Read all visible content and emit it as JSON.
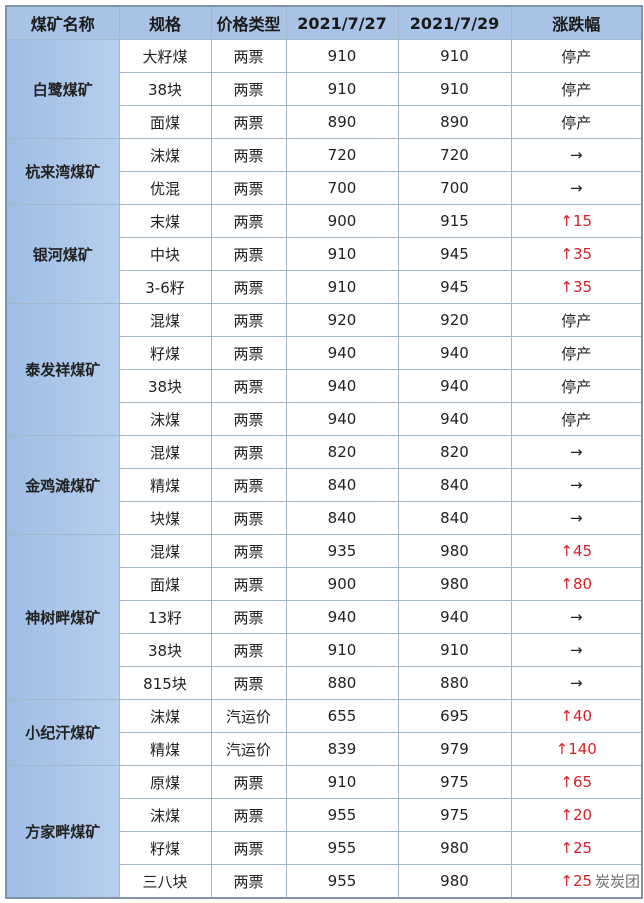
{
  "headers": [
    "煤矿名称",
    "规格",
    "价格类型",
    "2021/7/27",
    "2021/7/29",
    "涨跌幅"
  ],
  "colors": {
    "header_bg": "#a8c3e6",
    "mine_bg": "#a9c4e8",
    "up": "#d2232a",
    "border": "#a3b6cc"
  },
  "mines": [
    {
      "name": "白鹭煤矿",
      "rows": [
        [
          "大籽煤",
          "两票",
          "910",
          "910",
          "停产"
        ],
        [
          "38块",
          "两票",
          "910",
          "910",
          "停产"
        ],
        [
          "面煤",
          "两票",
          "890",
          "890",
          "停产"
        ]
      ]
    },
    {
      "name": "杭来湾煤矿",
      "rows": [
        [
          "沫煤",
          "两票",
          "720",
          "720",
          "→"
        ],
        [
          "优混",
          "两票",
          "700",
          "700",
          "→"
        ]
      ]
    },
    {
      "name": "银河煤矿",
      "rows": [
        [
          "末煤",
          "两票",
          "900",
          "915",
          "↑15"
        ],
        [
          "中块",
          "两票",
          "910",
          "945",
          "↑35"
        ],
        [
          "3-6籽",
          "两票",
          "910",
          "945",
          "↑35"
        ]
      ]
    },
    {
      "name": "泰发祥煤矿",
      "rows": [
        [
          "混煤",
          "两票",
          "920",
          "920",
          "停产"
        ],
        [
          "籽煤",
          "两票",
          "940",
          "940",
          "停产"
        ],
        [
          "38块",
          "两票",
          "940",
          "940",
          "停产"
        ],
        [
          "沫煤",
          "两票",
          "940",
          "940",
          "停产"
        ]
      ]
    },
    {
      "name": "金鸡滩煤矿",
      "rows": [
        [
          "混煤",
          "两票",
          "820",
          "820",
          "→"
        ],
        [
          "精煤",
          "两票",
          "840",
          "840",
          "→"
        ],
        [
          "块煤",
          "两票",
          "840",
          "840",
          "→"
        ]
      ]
    },
    {
      "name": "神树畔煤矿",
      "rows": [
        [
          "混煤",
          "两票",
          "935",
          "980",
          "↑45"
        ],
        [
          "面煤",
          "两票",
          "900",
          "980",
          "↑80"
        ],
        [
          "13籽",
          "两票",
          "940",
          "940",
          "→"
        ],
        [
          "38块",
          "两票",
          "910",
          "910",
          "→"
        ],
        [
          "815块",
          "两票",
          "880",
          "880",
          "→"
        ]
      ]
    },
    {
      "name": "小纪汗煤矿",
      "rows": [
        [
          "沫煤",
          "汽运价",
          "655",
          "695",
          "↑40"
        ],
        [
          "精煤",
          "汽运价",
          "839",
          "979",
          "↑140"
        ]
      ]
    },
    {
      "name": "方家畔煤矿",
      "rows": [
        [
          "原煤",
          "两票",
          "910",
          "975",
          "↑65"
        ],
        [
          "沫煤",
          "两票",
          "955",
          "975",
          "↑20"
        ],
        [
          "籽煤",
          "两票",
          "955",
          "980",
          "↑25"
        ],
        [
          "三八块",
          "两票",
          "955",
          "980",
          "↑25"
        ]
      ]
    }
  ],
  "watermark": "炭炭团"
}
